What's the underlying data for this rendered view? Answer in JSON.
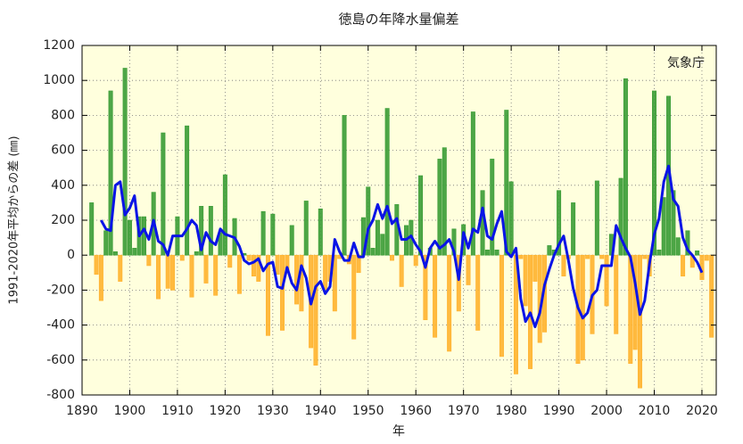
{
  "chart_data": {
    "type": "bar-line",
    "title": "徳島の年降水量偏差",
    "y_label": "1991-2020年平均からの差 (㎜)",
    "x_label": "年",
    "annotation": "気象庁",
    "xlim": [
      1890,
      2023
    ],
    "xticks": [
      1890,
      1900,
      1910,
      1920,
      1930,
      1940,
      1950,
      1960,
      1970,
      1980,
      1990,
      2000,
      2010,
      2020
    ],
    "ylim": [
      -800,
      1200
    ],
    "yticks": [
      -800,
      -600,
      -400,
      -200,
      0,
      200,
      400,
      600,
      800,
      1000,
      1200
    ],
    "grid": true,
    "background": "#ffffdd",
    "x": [
      1892,
      1893,
      1894,
      1895,
      1896,
      1897,
      1898,
      1899,
      1900,
      1901,
      1902,
      1903,
      1904,
      1905,
      1906,
      1907,
      1908,
      1909,
      1910,
      1911,
      1912,
      1913,
      1914,
      1915,
      1916,
      1917,
      1918,
      1919,
      1920,
      1921,
      1922,
      1923,
      1924,
      1925,
      1926,
      1927,
      1928,
      1929,
      1930,
      1931,
      1932,
      1933,
      1934,
      1935,
      1936,
      1937,
      1938,
      1939,
      1940,
      1941,
      1942,
      1943,
      1944,
      1945,
      1946,
      1947,
      1948,
      1949,
      1950,
      1951,
      1952,
      1953,
      1954,
      1955,
      1956,
      1957,
      1958,
      1959,
      1960,
      1961,
      1962,
      1963,
      1964,
      1965,
      1966,
      1967,
      1968,
      1969,
      1970,
      1971,
      1972,
      1973,
      1974,
      1975,
      1976,
      1977,
      1978,
      1979,
      1980,
      1981,
      1982,
      1983,
      1984,
      1985,
      1986,
      1987,
      1988,
      1989,
      1990,
      1991,
      1992,
      1993,
      1994,
      1995,
      1996,
      1997,
      1998,
      1999,
      2000,
      2001,
      2002,
      2003,
      2004,
      2005,
      2006,
      2007,
      2008,
      2009,
      2010,
      2011,
      2012,
      2013,
      2014,
      2015,
      2016,
      2017,
      2018,
      2019,
      2020,
      2021,
      2022
    ],
    "bars": {
      "pos_color": "#3a9c35",
      "neg_color": "#ffb22e",
      "values": [
        300,
        -110,
        -260,
        140,
        940,
        20,
        -150,
        1070,
        200,
        40,
        220,
        220,
        -60,
        360,
        -250,
        700,
        -190,
        -200,
        220,
        -30,
        740,
        -240,
        20,
        280,
        -160,
        280,
        -230,
        130,
        460,
        -70,
        210,
        -220,
        10,
        -30,
        -120,
        -150,
        250,
        -460,
        235,
        -110,
        -430,
        -100,
        170,
        -280,
        -320,
        310,
        -530,
        -630,
        265,
        -200,
        -150,
        -320,
        -20,
        800,
        -50,
        -480,
        -100,
        215,
        390,
        40,
        200,
        120,
        840,
        -30,
        290,
        -180,
        170,
        200,
        -60,
        455,
        -370,
        40,
        -470,
        550,
        615,
        -550,
        150,
        -320,
        175,
        -170,
        820,
        -430,
        370,
        30,
        550,
        30,
        -580,
        830,
        420,
        -680,
        -20,
        -290,
        -650,
        -150,
        -500,
        -440,
        55,
        30,
        370,
        -120,
        -20,
        300,
        -620,
        -600,
        -20,
        -450,
        425,
        -20,
        -290,
        120,
        -450,
        440,
        1010,
        -620,
        -540,
        -760,
        -20,
        -120,
        940,
        30,
        330,
        910,
        370,
        100,
        -120,
        140,
        -70,
        25,
        -140,
        -30,
        -470
      ]
    },
    "line": {
      "color": "#0a14e6",
      "values": [
        null,
        null,
        200,
        150,
        140,
        400,
        420,
        230,
        270,
        340,
        110,
        150,
        90,
        200,
        80,
        60,
        0,
        110,
        110,
        110,
        150,
        200,
        170,
        30,
        130,
        80,
        60,
        150,
        120,
        110,
        100,
        50,
        -30,
        -50,
        -40,
        -20,
        -90,
        -50,
        -40,
        -180,
        -190,
        -70,
        -160,
        -200,
        -60,
        -130,
        -280,
        -180,
        -150,
        -220,
        -180,
        90,
        20,
        -30,
        -30,
        70,
        -10,
        -10,
        150,
        200,
        290,
        210,
        280,
        180,
        210,
        90,
        90,
        110,
        60,
        20,
        -70,
        40,
        80,
        40,
        60,
        90,
        20,
        -140,
        130,
        40,
        150,
        130,
        270,
        110,
        90,
        180,
        250,
        20,
        -10,
        40,
        -250,
        -380,
        -330,
        -410,
        -330,
        -170,
        -80,
        0,
        60,
        110,
        -30,
        -190,
        -300,
        -360,
        -330,
        -230,
        -200,
        -60,
        -60,
        -60,
        170,
        100,
        40,
        -10,
        -160,
        -340,
        -260,
        -50,
        120,
        210,
        420,
        510,
        320,
        280,
        100,
        30,
        0,
        -40,
        -100,
        null,
        null
      ]
    }
  }
}
